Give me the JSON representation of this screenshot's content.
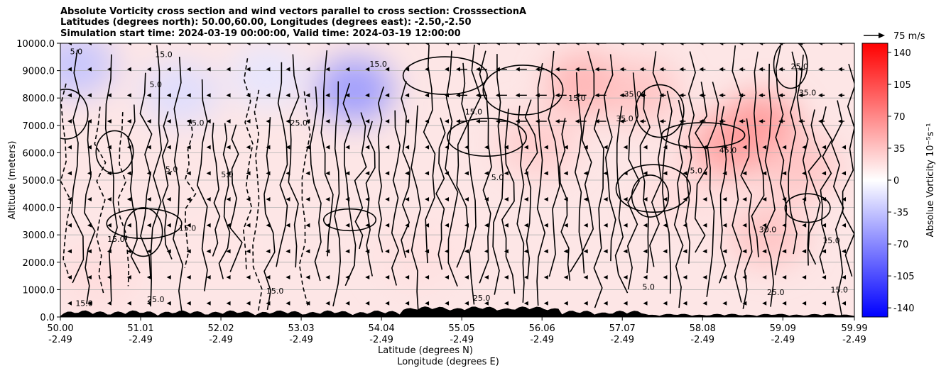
{
  "titles": [
    "Absolute Vorticity cross section and wind vectors parallel to cross section: CrosssectionA",
    "Latitudes (degrees north): 50.00,60.00, Longitudes (degrees east): -2.50,-2.50",
    "Simulation start time: 2024-03-19 00:00:00, Valid time: 2024-03-19 12:00:00"
  ],
  "chart_data": {
    "type": "heatmap",
    "title": "Absolute Vorticity cross section and wind vectors parallel to cross section: CrosssectionA",
    "ylabel": "Altitude (meters)",
    "xlabel_lines": [
      "Latitude (degrees N)",
      "Longitude (degrees E)"
    ],
    "ylim": [
      0,
      10000
    ],
    "xlim": [
      50.0,
      59.99
    ],
    "y_ticks": [
      {
        "value": 0,
        "label": "0.0"
      },
      {
        "value": 1000,
        "label": "1000.0"
      },
      {
        "value": 2000,
        "label": "2000.0"
      },
      {
        "value": 3000,
        "label": "3000.0"
      },
      {
        "value": 4000,
        "label": "4000.0"
      },
      {
        "value": 5000,
        "label": "5000.0"
      },
      {
        "value": 6000,
        "label": "6000.0"
      },
      {
        "value": 7000,
        "label": "7000.0"
      },
      {
        "value": 8000,
        "label": "8000.0"
      },
      {
        "value": 9000,
        "label": "9000.0"
      },
      {
        "value": 10000,
        "label": "10000.0"
      }
    ],
    "x_ticks": [
      {
        "value": 50.0,
        "label_lat": "50.00",
        "label_lon": "-2.49"
      },
      {
        "value": 51.01,
        "label_lat": "51.01",
        "label_lon": "-2.49"
      },
      {
        "value": 52.02,
        "label_lat": "52.02",
        "label_lon": "-2.49"
      },
      {
        "value": 53.03,
        "label_lat": "53.03",
        "label_lon": "-2.49"
      },
      {
        "value": 54.04,
        "label_lat": "54.04",
        "label_lon": "-2.49"
      },
      {
        "value": 55.05,
        "label_lat": "55.05",
        "label_lon": "-2.49"
      },
      {
        "value": 56.06,
        "label_lat": "56.06",
        "label_lon": "-2.49"
      },
      {
        "value": 57.07,
        "label_lat": "57.07",
        "label_lon": "-2.49"
      },
      {
        "value": 58.08,
        "label_lat": "58.08",
        "label_lon": "-2.49"
      },
      {
        "value": 59.09,
        "label_lat": "59.09",
        "label_lon": "-2.49"
      },
      {
        "value": 59.99,
        "label_lat": "59.99",
        "label_lon": "-2.49"
      }
    ],
    "colorbar": {
      "label": "Absolue Vorticity 10⁻⁵s⁻¹",
      "range": [
        -150,
        150
      ],
      "ticks": [
        "-140",
        "-105",
        "-70",
        "-35",
        "0",
        "35",
        "70",
        "105",
        "140"
      ],
      "tick_values": [
        -140,
        -105,
        -70,
        -35,
        0,
        35,
        70,
        105,
        140
      ],
      "colormap": "bwr",
      "colors": {
        "low": "#0000ff",
        "mid": "#ffffff",
        "high": "#ff0000"
      }
    },
    "quiver_key": {
      "label": "75 m/s",
      "value": 75
    },
    "vorticity_field": [
      {
        "lat": 50.2,
        "alt": 9200,
        "value": -35
      },
      {
        "lat": 51.5,
        "alt": 8200,
        "value": -20
      },
      {
        "lat": 53.7,
        "alt": 8300,
        "value": -60
      },
      {
        "lat": 52.6,
        "alt": 8800,
        "value": -15
      },
      {
        "lat": 56.6,
        "alt": 8500,
        "value": 45
      },
      {
        "lat": 57.3,
        "alt": 8200,
        "value": 35
      },
      {
        "lat": 58.4,
        "alt": 6200,
        "value": 55
      },
      {
        "lat": 58.8,
        "alt": 7000,
        "value": 60
      },
      {
        "lat": 59.3,
        "alt": 5500,
        "value": 35
      },
      {
        "lat": 58.9,
        "alt": 3000,
        "value": 35
      },
      {
        "lat": 55.0,
        "alt": 3000,
        "value": 15
      },
      {
        "lat": 54.5,
        "alt": 2200,
        "value": 18
      },
      {
        "lat": 52.0,
        "alt": 2500,
        "value": 15
      },
      {
        "lat": 50.5,
        "alt": 1500,
        "value": 20
      },
      {
        "lat": 56.0,
        "alt": 6300,
        "value": 30
      },
      {
        "lat": 57.8,
        "alt": 4500,
        "value": 20
      }
    ],
    "contour_labels": [
      {
        "lat": 50.7,
        "alt": 2750,
        "text": "15.0"
      },
      {
        "lat": 51.6,
        "alt": 3150,
        "text": "15.0"
      },
      {
        "lat": 51.3,
        "alt": 9500,
        "text": "15.0"
      },
      {
        "lat": 51.7,
        "alt": 7000,
        "text": "15.0"
      },
      {
        "lat": 53.0,
        "alt": 7000,
        "text": "25.0"
      },
      {
        "lat": 54.0,
        "alt": 9150,
        "text": "15.0"
      },
      {
        "lat": 55.2,
        "alt": 7400,
        "text": "15.0"
      },
      {
        "lat": 56.5,
        "alt": 7900,
        "text": "15.0"
      },
      {
        "lat": 57.2,
        "alt": 8050,
        "text": "35.0"
      },
      {
        "lat": 57.1,
        "alt": 7150,
        "text": "35.0"
      },
      {
        "lat": 58.4,
        "alt": 6000,
        "text": "45.0"
      },
      {
        "lat": 59.3,
        "alt": 9050,
        "text": "25.0"
      },
      {
        "lat": 59.4,
        "alt": 8100,
        "text": "35.0"
      },
      {
        "lat": 58.0,
        "alt": 5250,
        "text": "5.0"
      },
      {
        "lat": 58.9,
        "alt": 3100,
        "text": "30.0"
      },
      {
        "lat": 59.7,
        "alt": 2700,
        "text": "15.0"
      },
      {
        "lat": 59.8,
        "alt": 900,
        "text": "15.0"
      },
      {
        "lat": 50.3,
        "alt": 400,
        "text": "15.0"
      },
      {
        "lat": 51.2,
        "alt": 550,
        "text": "25.0"
      },
      {
        "lat": 52.7,
        "alt": 850,
        "text": "15.0"
      },
      {
        "lat": 55.3,
        "alt": 600,
        "text": "25.0"
      },
      {
        "lat": 57.4,
        "alt": 1000,
        "text": "5.0"
      },
      {
        "lat": 59.0,
        "alt": 800,
        "text": "25.0"
      },
      {
        "lat": 50.2,
        "alt": 9600,
        "text": "5.0"
      },
      {
        "lat": 51.2,
        "alt": 8400,
        "text": "5.0"
      },
      {
        "lat": 52.1,
        "alt": 5100,
        "text": "5.0"
      },
      {
        "lat": 51.4,
        "alt": 5300,
        "text": "5.0"
      },
      {
        "lat": 55.5,
        "alt": 5000,
        "text": "5.0"
      }
    ]
  }
}
